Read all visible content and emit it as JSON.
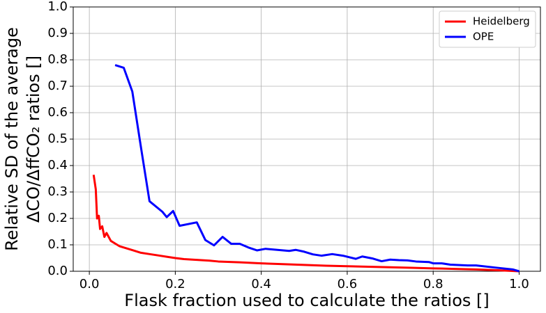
{
  "chart_data": {
    "type": "line",
    "xlabel": "Flask fraction used to calculate the ratios []",
    "ylabel": [
      "Relative SD of the average",
      "ΔCO/ΔffCO₂ ratios []"
    ],
    "xlim": [
      -0.0375,
      1.0495
    ],
    "ylim": [
      0,
      1
    ],
    "xticks": [
      {
        "value": 0,
        "label": "0.0"
      },
      0.2,
      0.4,
      0.6,
      0.8,
      {
        "value": 1,
        "label": "1.0"
      }
    ],
    "yticks": [
      {
        "value": 0,
        "label": "0.0"
      },
      0.1,
      0.2,
      0.3,
      0.4,
      0.5,
      0.6,
      0.7,
      0.8,
      0.9,
      {
        "value": 1,
        "label": "1.0"
      }
    ],
    "grid": true,
    "legend": "upper right",
    "series": [
      {
        "name": "Heidelberg",
        "color": "#ff0000",
        "x": [
          0.01,
          0.015,
          0.018,
          0.022,
          0.025,
          0.03,
          0.035,
          0.04,
          0.045,
          0.05,
          0.06,
          0.07,
          0.08,
          0.09,
          0.1,
          0.12,
          0.14,
          0.16,
          0.18,
          0.2,
          0.22,
          0.25,
          0.28,
          0.3,
          0.35,
          0.4,
          0.45,
          0.5,
          0.55,
          0.6,
          0.65,
          0.7,
          0.75,
          0.8,
          0.85,
          0.9,
          0.95,
          1.0
        ],
        "values": [
          0.365,
          0.31,
          0.2,
          0.21,
          0.16,
          0.17,
          0.13,
          0.145,
          0.13,
          0.115,
          0.105,
          0.095,
          0.09,
          0.085,
          0.08,
          0.07,
          0.065,
          0.06,
          0.055,
          0.05,
          0.046,
          0.043,
          0.04,
          0.037,
          0.034,
          0.03,
          0.027,
          0.024,
          0.021,
          0.019,
          0.017,
          0.015,
          0.013,
          0.011,
          0.009,
          0.007,
          0.004,
          0.0
        ]
      },
      {
        "name": "OPE",
        "color": "#0000ff",
        "x": [
          0.06,
          0.08,
          0.1,
          0.12,
          0.14,
          0.17,
          0.18,
          0.195,
          0.21,
          0.25,
          0.27,
          0.29,
          0.31,
          0.33,
          0.35,
          0.37,
          0.39,
          0.41,
          0.465,
          0.48,
          0.5,
          0.52,
          0.54,
          0.565,
          0.59,
          0.62,
          0.635,
          0.66,
          0.68,
          0.7,
          0.72,
          0.74,
          0.76,
          0.79,
          0.8,
          0.82,
          0.84,
          0.88,
          0.9,
          0.95,
          0.985,
          1.0
        ],
        "values": [
          0.78,
          0.77,
          0.68,
          0.47,
          0.265,
          0.225,
          0.205,
          0.228,
          0.172,
          0.185,
          0.118,
          0.098,
          0.13,
          0.104,
          0.104,
          0.09,
          0.079,
          0.085,
          0.077,
          0.081,
          0.074,
          0.064,
          0.059,
          0.065,
          0.059,
          0.047,
          0.056,
          0.048,
          0.038,
          0.044,
          0.042,
          0.041,
          0.037,
          0.035,
          0.03,
          0.03,
          0.025,
          0.022,
          0.022,
          0.013,
          0.007,
          0.0
        ]
      }
    ]
  }
}
